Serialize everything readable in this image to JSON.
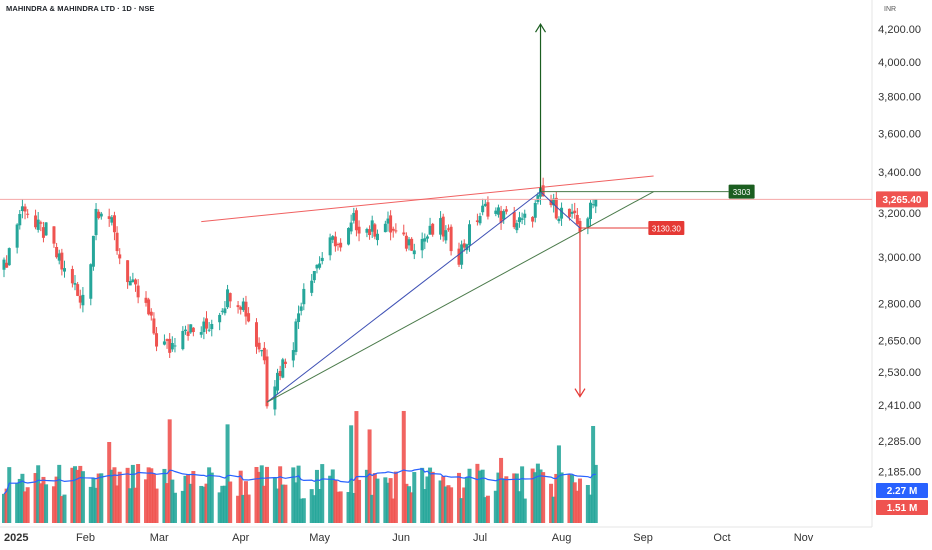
{
  "title": "MAHINDRA & MAHINDRA LTD · 1D · NSE",
  "currency": "INR",
  "colors": {
    "up": "#26a69a",
    "down": "#ef5350",
    "ma": "#2962ff",
    "levelLine": "#f4a7a7",
    "greenArrow": "#1b5e20",
    "redArrow": "#e53935",
    "blueTrend": "#3f51b5",
    "greenTrend": "#4a7a4a",
    "redTrend": "#f06060"
  },
  "chart_data": {
    "type": "candlestick",
    "price_axis": {
      "ticks": [
        4200,
        4000,
        3800,
        3600,
        3400,
        3200,
        3000,
        2800,
        2650,
        2530,
        2410,
        2285,
        2185
      ],
      "labels": [
        "4,200.00",
        "4,000.00",
        "3,800.00",
        "3,600.00",
        "3,400.00",
        "3,200.00",
        "3,000.00",
        "2,800.00",
        "2,650.00",
        "2,530.00",
        "2,410.00",
        "2,285.00",
        "2,185.00"
      ],
      "scale": "log"
    },
    "time_axis": {
      "labels": [
        "2025",
        "Feb",
        "Mar",
        "Apr",
        "May",
        "Jun",
        "Jul",
        "Aug",
        "Sep",
        "Oct",
        "Nov"
      ],
      "first_bold": true,
      "dates": [
        "2025-01-01",
        "2025-02-01",
        "2025-03-01",
        "2025-04-01",
        "2025-05-01",
        "2025-06-01",
        "2025-07-01",
        "2025-08-01",
        "2025-09-01",
        "2025-10-01",
        "2025-11-01"
      ]
    },
    "last_price": "3,265.40",
    "last_price_value": 3265.4,
    "volume": {
      "ma_label": "2.27 M",
      "last_label": "1.51 M"
    },
    "close_path": [
      [
        "2025-01-01",
        2950
      ],
      [
        "2025-01-07",
        3200
      ],
      [
        "2025-01-09",
        3240
      ],
      [
        "2025-01-13",
        3130
      ],
      [
        "2025-01-17",
        3110
      ],
      [
        "2025-01-23",
        2950
      ],
      [
        "2025-01-27",
        2900
      ],
      [
        "2025-01-30",
        2790
      ],
      [
        "2025-02-03",
        3000
      ],
      [
        "2025-02-05",
        3220
      ],
      [
        "2025-02-07",
        3230
      ],
      [
        "2025-02-10",
        3180
      ],
      [
        "2025-02-14",
        3000
      ],
      [
        "2025-02-19",
        2860
      ],
      [
        "2025-02-24",
        2780
      ],
      [
        "2025-02-28",
        2650
      ],
      [
        "2025-03-05",
        2620
      ],
      [
        "2025-03-10",
        2720
      ],
      [
        "2025-03-14",
        2680
      ],
      [
        "2025-03-19",
        2700
      ],
      [
        "2025-03-24",
        2780
      ],
      [
        "2025-03-28",
        2850
      ],
      [
        "2025-04-02",
        2800
      ],
      [
        "2025-04-07",
        2640
      ],
      [
        "2025-04-10",
        2600
      ],
      [
        "2025-04-11",
        2440
      ],
      [
        "2025-04-15",
        2520
      ],
      [
        "2025-04-21",
        2650
      ],
      [
        "2025-04-25",
        2880
      ],
      [
        "2025-05-02",
        3000
      ],
      [
        "2025-05-07",
        3080
      ],
      [
        "2025-05-09",
        3020
      ],
      [
        "2025-05-14",
        3160
      ],
      [
        "2025-05-20",
        3120
      ],
      [
        "2025-05-26",
        3150
      ],
      [
        "2025-06-02",
        3060
      ],
      [
        "2025-06-09",
        3080
      ],
      [
        "2025-06-16",
        3130
      ],
      [
        "2025-06-23",
        3010
      ],
      [
        "2025-06-30",
        3180
      ],
      [
        "2025-07-04",
        3230
      ],
      [
        "2025-07-10",
        3180
      ],
      [
        "2025-07-17",
        3150
      ],
      [
        "2025-07-21",
        3200
      ],
      [
        "2025-07-24",
        3280
      ],
      [
        "2025-07-29",
        3230
      ],
      [
        "2025-08-04",
        3180
      ],
      [
        "2025-08-08",
        3135
      ],
      [
        "2025-08-12",
        3210
      ],
      [
        "2025-08-14",
        3265.4
      ]
    ],
    "first_trading_day": "2025-01-01",
    "last_trading_day": "2025-08-14",
    "annotations": {
      "resistance_line": {
        "price": 3265.4
      },
      "blue_trendline": [
        [
          "2025-04-11",
          2420
        ],
        [
          "2025-07-24",
          3303
        ]
      ],
      "green_trendline": [
        [
          "2025-04-11",
          2420
        ],
        [
          "2025-09-05",
          3303
        ]
      ],
      "red_trendline": [
        [
          "2025-03-17",
          3160
        ],
        [
          "2025-09-05",
          3380
        ]
      ],
      "level_3303": {
        "label": "3303",
        "from": "2025-07-24",
        "to": "2025-09-05",
        "price": 3303
      },
      "level_3130": {
        "label": "3130.30",
        "from": "2025-08-08",
        "to": "2025-09-03",
        "price": 3130.3
      },
      "target_up": {
        "date": "2025-07-24",
        "from": 3303,
        "to": 4230
      },
      "target_down": {
        "date": "2025-08-08",
        "from": 3130.3,
        "to": 2440
      },
      "triangle": [
        [
          "2025-07-24",
          3303
        ],
        [
          "2025-07-30",
          3230
        ],
        [
          "2025-08-08",
          3130.3
        ]
      ]
    }
  }
}
